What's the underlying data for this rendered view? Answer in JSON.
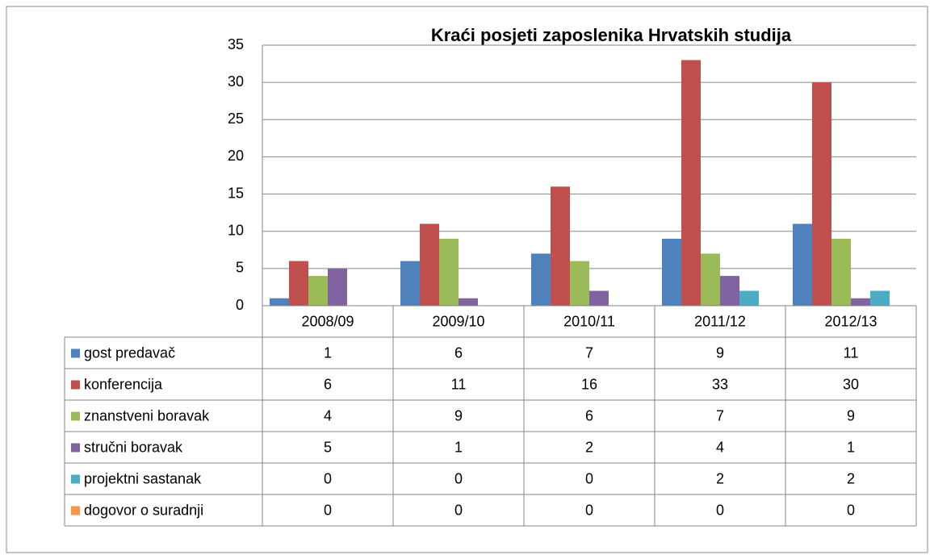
{
  "chart_data": {
    "type": "bar",
    "title": "Kraći posjeti zaposlenika Hrvatskih studija",
    "categories": [
      "2008/09",
      "2009/10",
      "2010/11",
      "2011/12",
      "2012/13"
    ],
    "series": [
      {
        "name": "gost predavač",
        "color": "#4f81bd",
        "values": [
          1,
          6,
          7,
          9,
          11
        ]
      },
      {
        "name": "konferencija",
        "color": "#c0504d",
        "values": [
          6,
          11,
          16,
          33,
          30
        ]
      },
      {
        "name": "znanstveni boravak",
        "color": "#9bbb59",
        "values": [
          4,
          9,
          6,
          7,
          9
        ]
      },
      {
        "name": "stručni boravak",
        "color": "#8064a2",
        "values": [
          5,
          1,
          2,
          4,
          1
        ]
      },
      {
        "name": "projektni sastanak",
        "color": "#4bacc6",
        "values": [
          0,
          0,
          0,
          2,
          2
        ]
      },
      {
        "name": "dogovor o suradnji",
        "color": "#f79646",
        "values": [
          0,
          0,
          0,
          0,
          0
        ]
      }
    ],
    "ylim": [
      0,
      35
    ],
    "yticks": [
      0,
      5,
      10,
      15,
      20,
      25,
      30,
      35
    ],
    "grid": true,
    "data_table": true
  }
}
